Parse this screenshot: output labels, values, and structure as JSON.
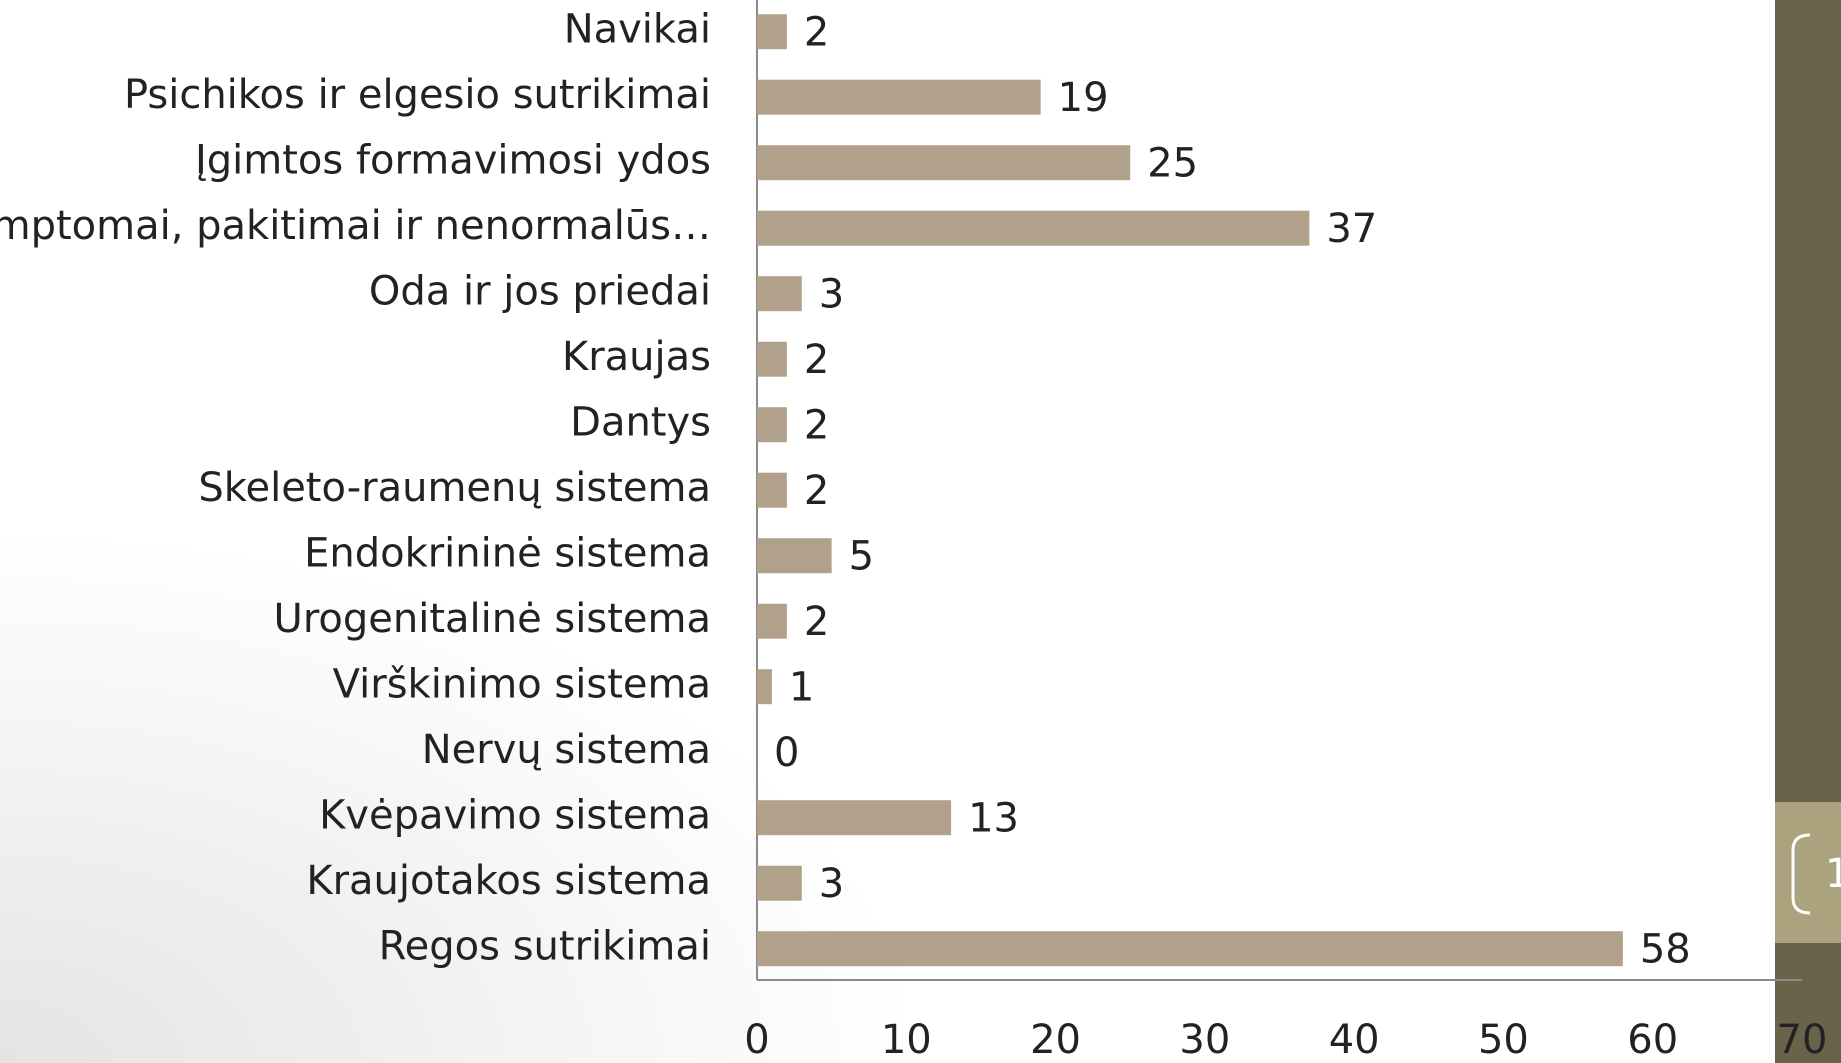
{
  "chart_data": {
    "type": "bar",
    "orientation": "horizontal",
    "categories": [
      "Navikai",
      "Psichikos ir elgesio sutrikimai",
      "Įgimtos formavimosi ydos",
      "Simptomai, pakitimai ir nenormalūs…",
      "Oda ir jos priedai",
      "Kraujas",
      "Dantys",
      "Skeleto-raumenų sistema",
      "Endokrininė sistema",
      "Urogenitalinė sistema",
      "Virškinimo sistema",
      "Nervų sistema",
      "Kvėpavimo sistema",
      "Kraujotakos sistema",
      "Regos sutrikimai"
    ],
    "values": [
      2,
      19,
      25,
      37,
      3,
      2,
      2,
      2,
      5,
      2,
      1,
      0,
      13,
      3,
      58
    ],
    "color": "#b1a18b",
    "xlim": [
      0,
      70
    ],
    "xticks": [
      0,
      10,
      20,
      30,
      40,
      50,
      60,
      70
    ],
    "grid": false
  },
  "page_number": "1"
}
